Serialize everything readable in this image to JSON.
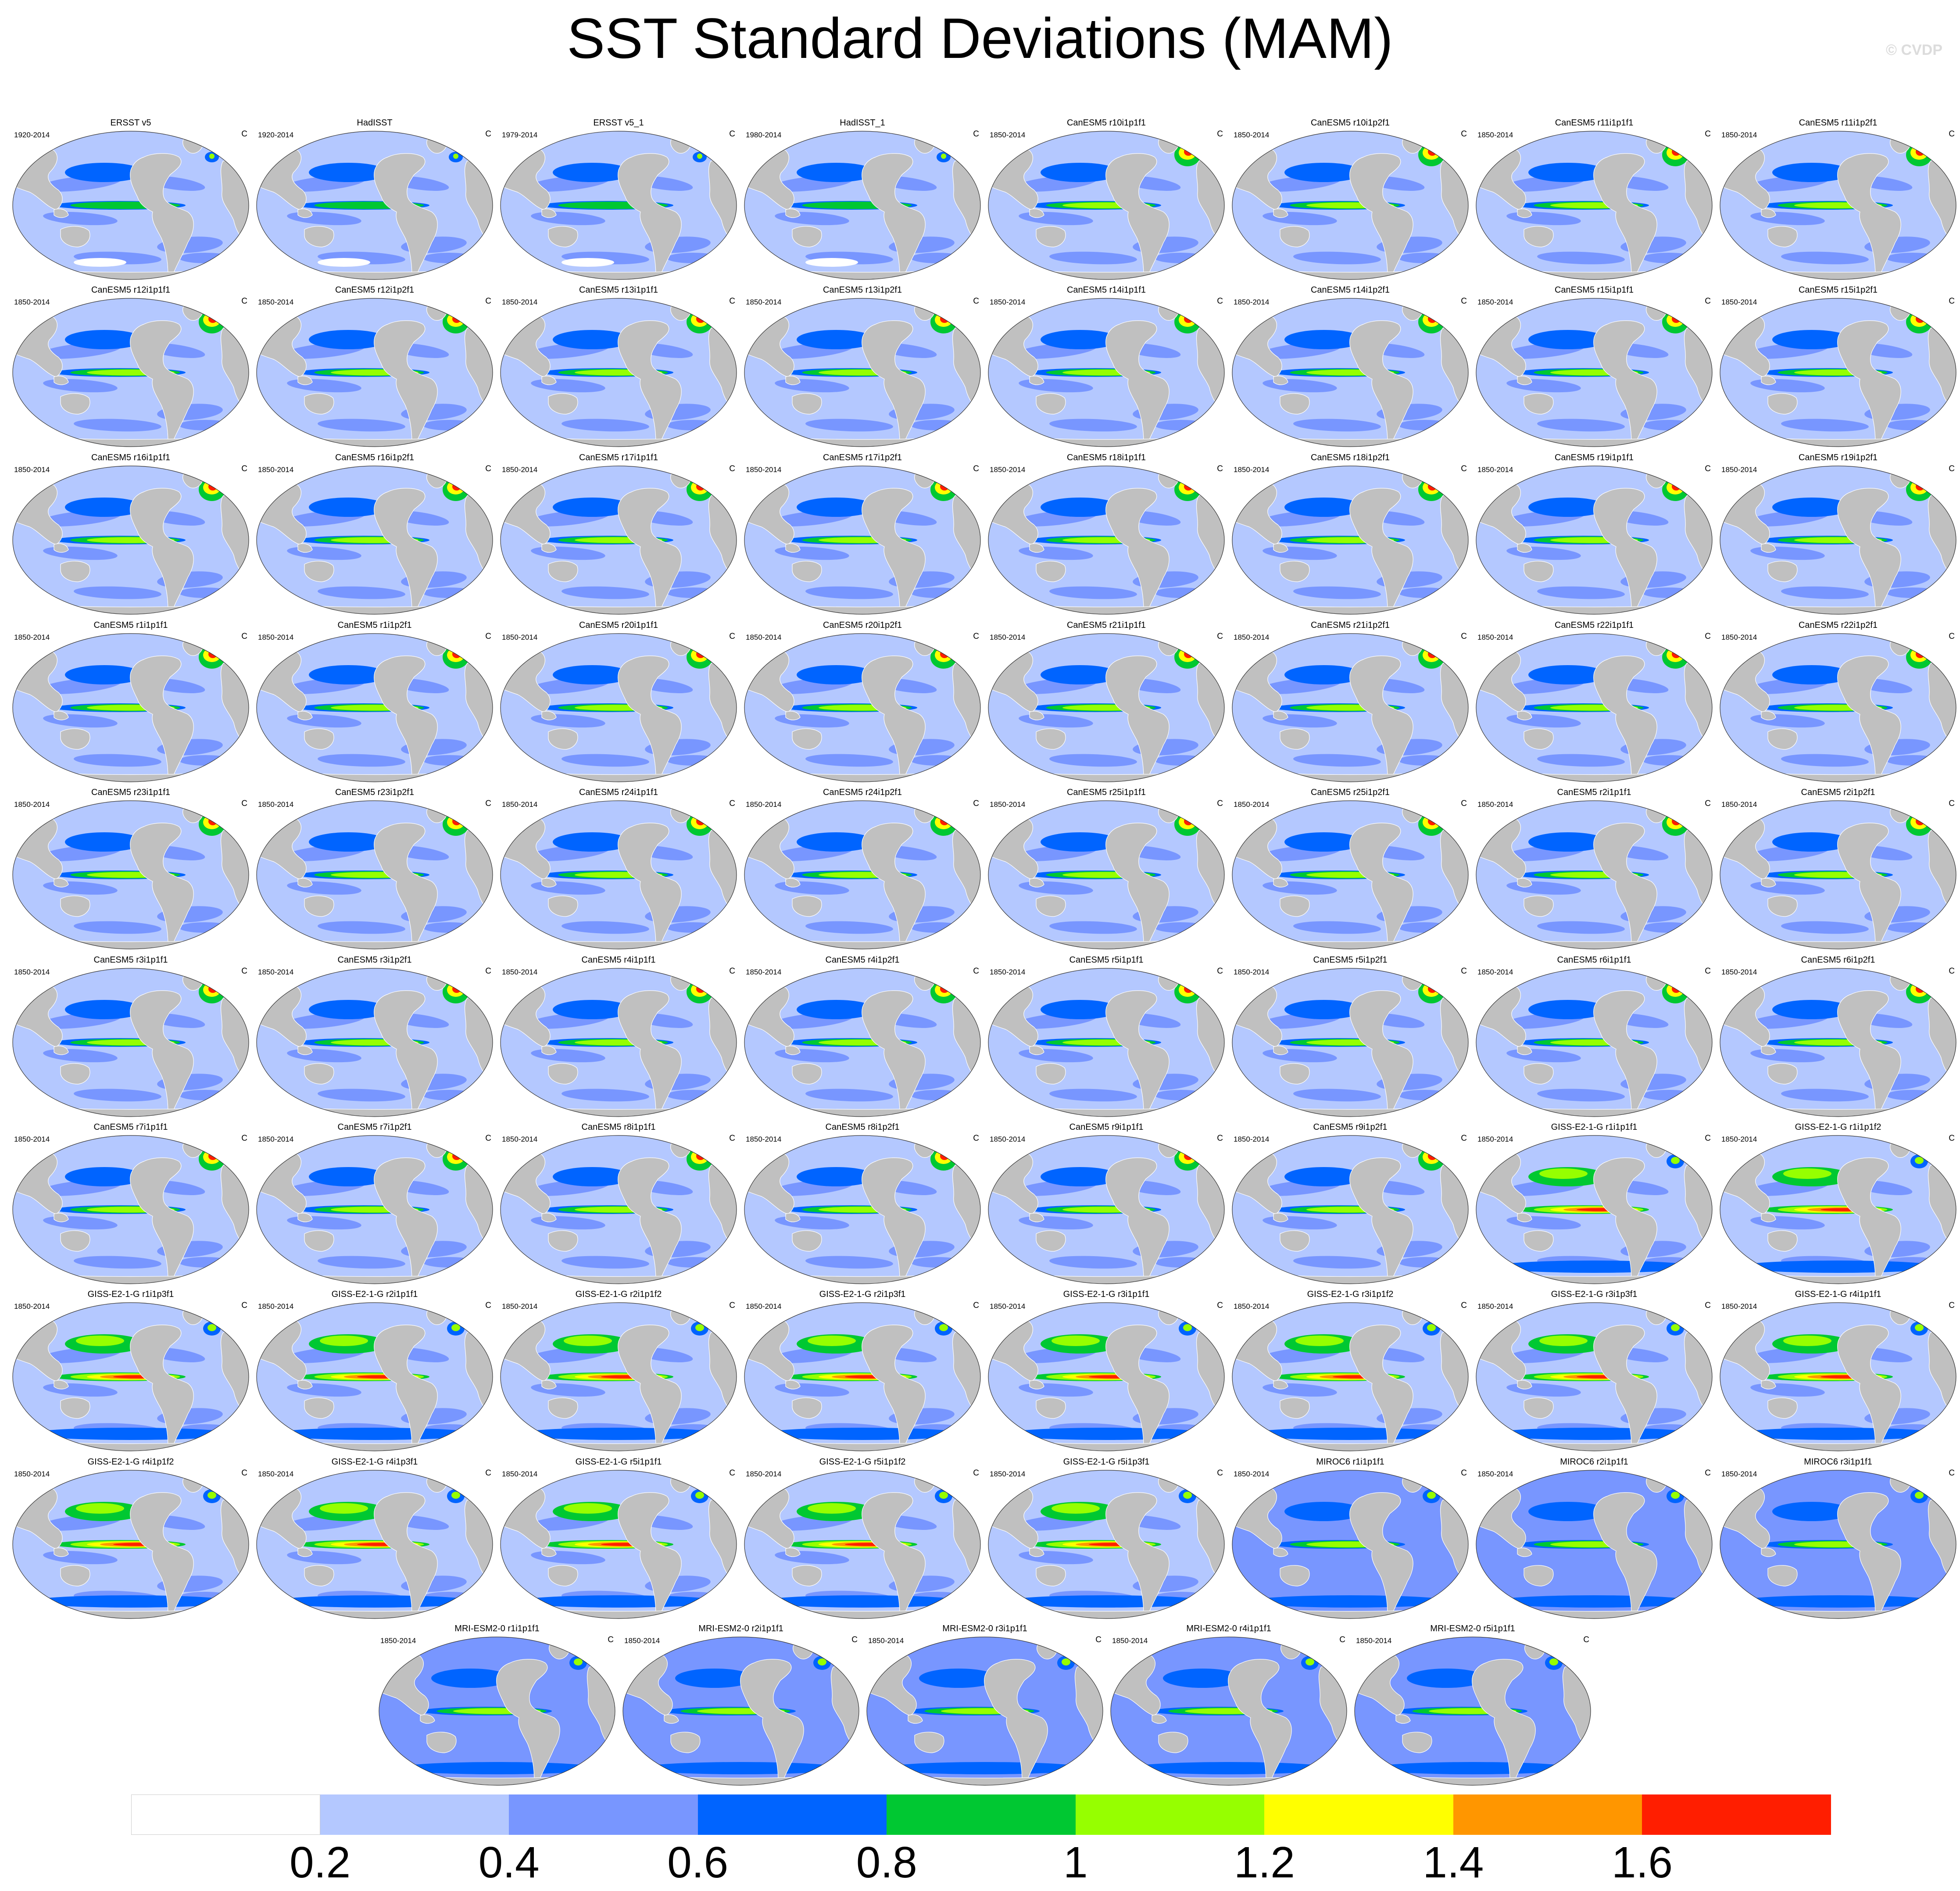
{
  "title": "SST Standard Deviations (MAM)",
  "credit": "© CVDP",
  "unit": "C",
  "colors": {
    "land": "#c0c0c0",
    "levels": [
      "#ffffff",
      "#b4c8ff",
      "#7896ff",
      "#0064ff",
      "#00c832",
      "#96ff00",
      "#ffff00",
      "#ff9600",
      "#ff1e00"
    ],
    "coast": "#ffffff",
    "rim": "#333333"
  },
  "colorbar": {
    "levels": [
      0.2,
      0.4,
      0.6,
      0.8,
      1,
      1.2,
      1.4,
      1.6
    ],
    "labels": [
      "0.2",
      "0.4",
      "0.6",
      "0.8",
      "1",
      "1.2",
      "1.4",
      "1.6"
    ]
  },
  "panels": [
    {
      "title": "ERSST v5",
      "years": "1920-2014",
      "family": "obs"
    },
    {
      "title": "HadISST",
      "years": "1920-2014",
      "family": "obs"
    },
    {
      "title": "ERSST v5_1",
      "years": "1979-2014",
      "family": "obs"
    },
    {
      "title": "HadISST_1",
      "years": "1980-2014",
      "family": "obs"
    },
    {
      "title": "CanESM5 r10i1p1f1",
      "years": "1850-2014",
      "family": "canesm"
    },
    {
      "title": "CanESM5 r10i1p2f1",
      "years": "1850-2014",
      "family": "canesm"
    },
    {
      "title": "CanESM5 r11i1p1f1",
      "years": "1850-2014",
      "family": "canesm"
    },
    {
      "title": "CanESM5 r11i1p2f1",
      "years": "1850-2014",
      "family": "canesm"
    },
    {
      "title": "CanESM5 r12i1p1f1",
      "years": "1850-2014",
      "family": "canesm"
    },
    {
      "title": "CanESM5 r12i1p2f1",
      "years": "1850-2014",
      "family": "canesm"
    },
    {
      "title": "CanESM5 r13i1p1f1",
      "years": "1850-2014",
      "family": "canesm"
    },
    {
      "title": "CanESM5 r13i1p2f1",
      "years": "1850-2014",
      "family": "canesm"
    },
    {
      "title": "CanESM5 r14i1p1f1",
      "years": "1850-2014",
      "family": "canesm"
    },
    {
      "title": "CanESM5 r14i1p2f1",
      "years": "1850-2014",
      "family": "canesm"
    },
    {
      "title": "CanESM5 r15i1p1f1",
      "years": "1850-2014",
      "family": "canesm"
    },
    {
      "title": "CanESM5 r15i1p2f1",
      "years": "1850-2014",
      "family": "canesm"
    },
    {
      "title": "CanESM5 r16i1p1f1",
      "years": "1850-2014",
      "family": "canesm"
    },
    {
      "title": "CanESM5 r16i1p2f1",
      "years": "1850-2014",
      "family": "canesm"
    },
    {
      "title": "CanESM5 r17i1p1f1",
      "years": "1850-2014",
      "family": "canesm"
    },
    {
      "title": "CanESM5 r17i1p2f1",
      "years": "1850-2014",
      "family": "canesm"
    },
    {
      "title": "CanESM5 r18i1p1f1",
      "years": "1850-2014",
      "family": "canesm"
    },
    {
      "title": "CanESM5 r18i1p2f1",
      "years": "1850-2014",
      "family": "canesm"
    },
    {
      "title": "CanESM5 r19i1p1f1",
      "years": "1850-2014",
      "family": "canesm"
    },
    {
      "title": "CanESM5 r19i1p2f1",
      "years": "1850-2014",
      "family": "canesm"
    },
    {
      "title": "CanESM5 r1i1p1f1",
      "years": "1850-2014",
      "family": "canesm"
    },
    {
      "title": "CanESM5 r1i1p2f1",
      "years": "1850-2014",
      "family": "canesm"
    },
    {
      "title": "CanESM5 r20i1p1f1",
      "years": "1850-2014",
      "family": "canesm"
    },
    {
      "title": "CanESM5 r20i1p2f1",
      "years": "1850-2014",
      "family": "canesm"
    },
    {
      "title": "CanESM5 r21i1p1f1",
      "years": "1850-2014",
      "family": "canesm"
    },
    {
      "title": "CanESM5 r21i1p2f1",
      "years": "1850-2014",
      "family": "canesm"
    },
    {
      "title": "CanESM5 r22i1p1f1",
      "years": "1850-2014",
      "family": "canesm"
    },
    {
      "title": "CanESM5 r22i1p2f1",
      "years": "1850-2014",
      "family": "canesm"
    },
    {
      "title": "CanESM5 r23i1p1f1",
      "years": "1850-2014",
      "family": "canesm"
    },
    {
      "title": "CanESM5 r23i1p2f1",
      "years": "1850-2014",
      "family": "canesm"
    },
    {
      "title": "CanESM5 r24i1p1f1",
      "years": "1850-2014",
      "family": "canesm"
    },
    {
      "title": "CanESM5 r24i1p2f1",
      "years": "1850-2014",
      "family": "canesm"
    },
    {
      "title": "CanESM5 r25i1p1f1",
      "years": "1850-2014",
      "family": "canesm"
    },
    {
      "title": "CanESM5 r25i1p2f1",
      "years": "1850-2014",
      "family": "canesm"
    },
    {
      "title": "CanESM5 r2i1p1f1",
      "years": "1850-2014",
      "family": "canesm"
    },
    {
      "title": "CanESM5 r2i1p2f1",
      "years": "1850-2014",
      "family": "canesm"
    },
    {
      "title": "CanESM5 r3i1p1f1",
      "years": "1850-2014",
      "family": "canesm"
    },
    {
      "title": "CanESM5 r3i1p2f1",
      "years": "1850-2014",
      "family": "canesm"
    },
    {
      "title": "CanESM5 r4i1p1f1",
      "years": "1850-2014",
      "family": "canesm"
    },
    {
      "title": "CanESM5 r4i1p2f1",
      "years": "1850-2014",
      "family": "canesm"
    },
    {
      "title": "CanESM5 r5i1p1f1",
      "years": "1850-2014",
      "family": "canesm"
    },
    {
      "title": "CanESM5 r5i1p2f1",
      "years": "1850-2014",
      "family": "canesm"
    },
    {
      "title": "CanESM5 r6i1p1f1",
      "years": "1850-2014",
      "family": "canesm"
    },
    {
      "title": "CanESM5 r6i1p2f1",
      "years": "1850-2014",
      "family": "canesm"
    },
    {
      "title": "CanESM5 r7i1p1f1",
      "years": "1850-2014",
      "family": "canesm"
    },
    {
      "title": "CanESM5 r7i1p2f1",
      "years": "1850-2014",
      "family": "canesm"
    },
    {
      "title": "CanESM5 r8i1p1f1",
      "years": "1850-2014",
      "family": "canesm"
    },
    {
      "title": "CanESM5 r8i1p2f1",
      "years": "1850-2014",
      "family": "canesm"
    },
    {
      "title": "CanESM5 r9i1p1f1",
      "years": "1850-2014",
      "family": "canesm"
    },
    {
      "title": "CanESM5 r9i1p2f1",
      "years": "1850-2014",
      "family": "canesm"
    },
    {
      "title": "GISS-E2-1-G r1i1p1f1",
      "years": "1850-2014",
      "family": "giss_low"
    },
    {
      "title": "GISS-E2-1-G r1i1p1f2",
      "years": "1850-2014",
      "family": "giss_low"
    },
    {
      "title": "GISS-E2-1-G r1i1p3f1",
      "years": "1850-2014",
      "family": "giss"
    },
    {
      "title": "GISS-E2-1-G r2i1p1f1",
      "years": "1850-2014",
      "family": "giss"
    },
    {
      "title": "GISS-E2-1-G r2i1p1f2",
      "years": "1850-2014",
      "family": "giss"
    },
    {
      "title": "GISS-E2-1-G r2i1p3f1",
      "years": "1850-2014",
      "family": "giss"
    },
    {
      "title": "GISS-E2-1-G r3i1p1f1",
      "years": "1850-2014",
      "family": "giss"
    },
    {
      "title": "GISS-E2-1-G r3i1p1f2",
      "years": "1850-2014",
      "family": "giss"
    },
    {
      "title": "GISS-E2-1-G r3i1p3f1",
      "years": "1850-2014",
      "family": "giss"
    },
    {
      "title": "GISS-E2-1-G r4i1p1f1",
      "years": "1850-2014",
      "family": "giss"
    },
    {
      "title": "GISS-E2-1-G r4i1p1f2",
      "years": "1850-2014",
      "family": "giss"
    },
    {
      "title": "GISS-E2-1-G r4i1p3f1",
      "years": "1850-2014",
      "family": "giss"
    },
    {
      "title": "GISS-E2-1-G r5i1p1f1",
      "years": "1850-2014",
      "family": "giss"
    },
    {
      "title": "GISS-E2-1-G r5i1p1f2",
      "years": "1850-2014",
      "family": "giss"
    },
    {
      "title": "GISS-E2-1-G r5i1p3f1",
      "years": "1850-2014",
      "family": "giss"
    },
    {
      "title": "MIROC6 r1i1p1f1",
      "years": "1850-2014",
      "family": "miroc"
    },
    {
      "title": "MIROC6 r2i1p1f1",
      "years": "1850-2014",
      "family": "miroc"
    },
    {
      "title": "MIROC6 r3i1p1f1",
      "years": "1850-2014",
      "family": "miroc"
    },
    {
      "title": "MRI-ESM2-0 r1i1p1f1",
      "years": "1850-2014",
      "family": "mri"
    },
    {
      "title": "MRI-ESM2-0 r2i1p1f1",
      "years": "1850-2014",
      "family": "mri"
    },
    {
      "title": "MRI-ESM2-0 r3i1p1f1",
      "years": "1850-2014",
      "family": "mri"
    },
    {
      "title": "MRI-ESM2-0 r4i1p1f1",
      "years": "1850-2014",
      "family": "mri"
    },
    {
      "title": "MRI-ESM2-0 r5i1p1f1",
      "years": "1850-2014",
      "family": "mri"
    }
  ]
}
